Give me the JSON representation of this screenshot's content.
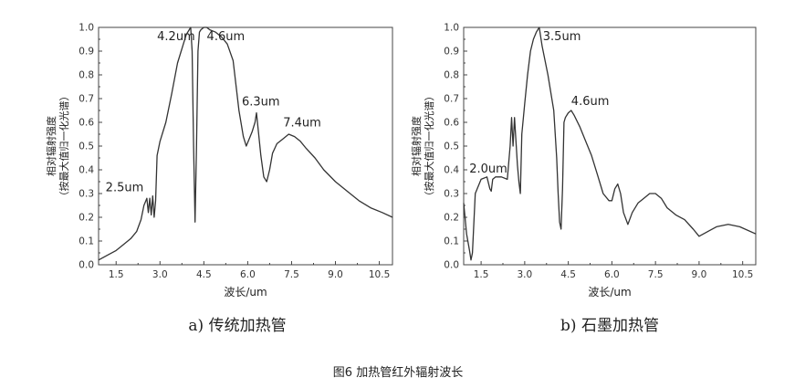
{
  "figure_caption": "图6 加热管红外辐射波长",
  "chart_data": [
    {
      "type": "line",
      "subtitle": "a) 传统加热管",
      "xlabel": "波长/um",
      "ylabel": [
        "相对辐射强度",
        "（按最大值归一化光谱）"
      ],
      "xlim": [
        0.9,
        10.95
      ],
      "ylim": [
        0,
        1.0
      ],
      "xticks": [
        "1.5",
        "3.0",
        "4.5",
        "6.0",
        "7.5",
        "9.0",
        "10.5"
      ],
      "yticks": [
        "0.0",
        "0.1",
        "0.2",
        "0.3",
        "0.4",
        "0.5",
        "0.6",
        "0.7",
        "0.8",
        "0.9",
        "1.0"
      ],
      "annotations": [
        {
          "text": "2.5um",
          "x": 2.5,
          "y": 0.29
        },
        {
          "text": "4.2um",
          "x": 4.2,
          "y": 1.0
        },
        {
          "text": "4.6um",
          "x": 4.6,
          "y": 1.0
        },
        {
          "text": "6.3um",
          "x": 6.3,
          "y": 0.64
        },
        {
          "text": "7.4um",
          "x": 7.4,
          "y": 0.56
        }
      ],
      "series": [
        {
          "x": [
            0.9,
            1.2,
            1.5,
            1.8,
            2.0,
            2.2,
            2.35,
            2.45,
            2.55,
            2.6,
            2.65,
            2.7,
            2.75,
            2.8,
            2.85,
            2.9,
            3.0,
            3.2,
            3.4,
            3.6,
            3.8,
            3.9,
            4.0,
            4.05,
            4.1,
            4.15,
            4.2,
            4.25,
            4.3,
            4.35,
            4.4,
            4.5,
            4.6,
            4.7,
            4.9,
            5.1,
            5.3,
            5.5,
            5.7,
            5.85,
            5.95,
            6.05,
            6.15,
            6.25,
            6.3,
            6.35,
            6.45,
            6.55,
            6.65,
            6.75,
            6.85,
            7.0,
            7.2,
            7.4,
            7.6,
            7.8,
            8.0,
            8.3,
            8.6,
            9.0,
            9.4,
            9.8,
            10.2,
            10.6,
            10.95
          ],
          "y": [
            0.02,
            0.04,
            0.06,
            0.09,
            0.11,
            0.14,
            0.19,
            0.25,
            0.28,
            0.22,
            0.28,
            0.21,
            0.29,
            0.2,
            0.27,
            0.46,
            0.52,
            0.6,
            0.72,
            0.85,
            0.93,
            0.97,
            0.99,
            1.0,
            0.9,
            0.5,
            0.18,
            0.5,
            0.9,
            0.98,
            0.99,
            1.0,
            1.0,
            0.99,
            0.98,
            0.96,
            0.93,
            0.86,
            0.65,
            0.54,
            0.5,
            0.53,
            0.56,
            0.6,
            0.64,
            0.58,
            0.46,
            0.37,
            0.35,
            0.4,
            0.47,
            0.51,
            0.53,
            0.55,
            0.54,
            0.52,
            0.49,
            0.45,
            0.4,
            0.35,
            0.31,
            0.27,
            0.24,
            0.22,
            0.2
          ]
        }
      ]
    },
    {
      "type": "line",
      "subtitle": "b) 石墨加热管",
      "xlabel": "波长/um",
      "ylabel": [
        "相对辐射强度",
        "（按最大值归一化光谱）"
      ],
      "xlim": [
        0.9,
        10.95
      ],
      "ylim": [
        0,
        1.0
      ],
      "xticks": [
        "1.5",
        "3.0",
        "4.5",
        "6.0",
        "7.5",
        "9.0",
        "10.5"
      ],
      "yticks": [
        "0.0",
        "0.1",
        "0.2",
        "0.3",
        "0.4",
        "0.5",
        "0.6",
        "0.7",
        "0.8",
        "0.9",
        "1.0"
      ],
      "annotations": [
        {
          "text": "2.0um",
          "x": 2.0,
          "y": 0.38
        },
        {
          "text": "3.5um",
          "x": 3.5,
          "y": 1.0
        },
        {
          "text": "4.6um",
          "x": 4.6,
          "y": 0.65
        }
      ],
      "series": [
        {
          "x": [
            0.9,
            1.0,
            1.1,
            1.15,
            1.2,
            1.3,
            1.5,
            1.7,
            1.8,
            1.85,
            1.9,
            2.0,
            2.2,
            2.4,
            2.5,
            2.55,
            2.6,
            2.65,
            2.75,
            2.8,
            2.85,
            2.9,
            3.0,
            3.1,
            3.2,
            3.3,
            3.4,
            3.5,
            3.6,
            3.8,
            4.0,
            4.1,
            4.15,
            4.2,
            4.25,
            4.3,
            4.35,
            4.4,
            4.5,
            4.6,
            4.7,
            4.9,
            5.1,
            5.3,
            5.5,
            5.7,
            5.9,
            6.0,
            6.1,
            6.2,
            6.3,
            6.4,
            6.55,
            6.7,
            6.9,
            7.1,
            7.3,
            7.5,
            7.7,
            7.9,
            8.2,
            8.5,
            8.8,
            9.0,
            9.3,
            9.6,
            10.0,
            10.4,
            10.95
          ],
          "y": [
            0.26,
            0.13,
            0.06,
            0.02,
            0.05,
            0.3,
            0.36,
            0.37,
            0.32,
            0.31,
            0.36,
            0.37,
            0.37,
            0.36,
            0.5,
            0.62,
            0.5,
            0.62,
            0.42,
            0.35,
            0.3,
            0.55,
            0.68,
            0.8,
            0.9,
            0.95,
            0.98,
            1.0,
            0.92,
            0.8,
            0.65,
            0.45,
            0.3,
            0.18,
            0.15,
            0.32,
            0.6,
            0.62,
            0.64,
            0.65,
            0.63,
            0.58,
            0.52,
            0.46,
            0.38,
            0.3,
            0.27,
            0.27,
            0.32,
            0.34,
            0.3,
            0.22,
            0.17,
            0.22,
            0.26,
            0.28,
            0.3,
            0.3,
            0.28,
            0.24,
            0.21,
            0.19,
            0.15,
            0.12,
            0.14,
            0.16,
            0.17,
            0.16,
            0.13
          ]
        }
      ]
    }
  ]
}
